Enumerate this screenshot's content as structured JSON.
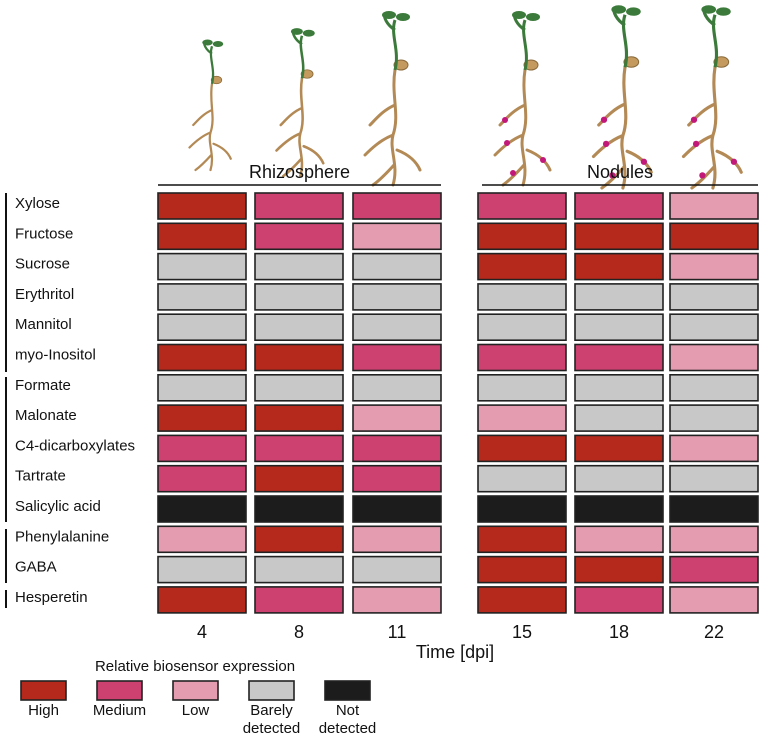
{
  "groups": [
    {
      "title": "Rhizosphere",
      "columns": [
        "4",
        "8",
        "11"
      ]
    },
    {
      "title": "Nodules",
      "columns": [
        "15",
        "18",
        "22"
      ]
    }
  ],
  "x_label": "Time [dpi]",
  "legend": {
    "title": "Relative biosensor expression",
    "items": [
      {
        "label": "High",
        "color": "#b5281c"
      },
      {
        "label": "Medium",
        "color": "#cc4170"
      },
      {
        "label": "Low",
        "color": "#e39cb0"
      },
      {
        "label": "Barely detected",
        "color": "#c8c8c8"
      },
      {
        "label": "Not detected",
        "color": "#1c1c1c"
      }
    ]
  },
  "rows": [
    {
      "name": "Xylose",
      "levels": [
        "High",
        "Medium",
        "Medium",
        "Medium",
        "Medium",
        "Low"
      ]
    },
    {
      "name": "Fructose",
      "levels": [
        "High",
        "Medium",
        "Low",
        "High",
        "High",
        "High"
      ]
    },
    {
      "name": "Sucrose",
      "levels": [
        "Barely detected",
        "Barely detected",
        "Barely detected",
        "High",
        "High",
        "Low"
      ]
    },
    {
      "name": "Erythritol",
      "levels": [
        "Barely detected",
        "Barely detected",
        "Barely detected",
        "Barely detected",
        "Barely detected",
        "Barely detected"
      ]
    },
    {
      "name": "Mannitol",
      "levels": [
        "Barely detected",
        "Barely detected",
        "Barely detected",
        "Barely detected",
        "Barely detected",
        "Barely detected"
      ]
    },
    {
      "name": "myo-Inositol",
      "levels": [
        "High",
        "High",
        "Medium",
        "Medium",
        "Medium",
        "Low"
      ]
    },
    {
      "name": "Formate",
      "levels": [
        "Barely detected",
        "Barely detected",
        "Barely detected",
        "Barely detected",
        "Barely detected",
        "Barely detected"
      ]
    },
    {
      "name": "Malonate",
      "levels": [
        "High",
        "High",
        "Low",
        "Low",
        "Barely detected",
        "Barely detected"
      ]
    },
    {
      "name": "C4-dicarboxylates",
      "levels": [
        "Medium",
        "Medium",
        "Medium",
        "High",
        "High",
        "Low"
      ]
    },
    {
      "name": "Tartrate",
      "levels": [
        "Medium",
        "High",
        "Medium",
        "Barely detected",
        "Barely detected",
        "Barely detected"
      ]
    },
    {
      "name": "Salicylic acid",
      "levels": [
        "Not detected",
        "Not detected",
        "Not detected",
        "Not detected",
        "Not detected",
        "Not detected"
      ]
    },
    {
      "name": "Phenylalanine",
      "levels": [
        "Low",
        "High",
        "Low",
        "High",
        "Low",
        "Low"
      ]
    },
    {
      "name": "GABA",
      "levels": [
        "Barely detected",
        "Barely detected",
        "Barely detected",
        "High",
        "High",
        "Medium"
      ]
    },
    {
      "name": "Hesperetin",
      "levels": [
        "High",
        "Medium",
        "Low",
        "High",
        "Medium",
        "Low"
      ]
    }
  ]
}
